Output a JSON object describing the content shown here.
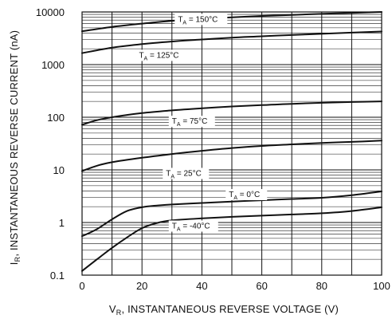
{
  "chart_data": {
    "type": "line",
    "xlabel": {
      "main": "V",
      "sub": "R",
      "rest": ", INSTANTANEOUS REVERSE VOLTAGE (V)"
    },
    "ylabel": {
      "main": "I",
      "sub": "R",
      "rest": ", INSTANTANEOUS REVERSE CURRENT (nA)"
    },
    "xlim": [
      0,
      100
    ],
    "ylim": [
      0.1,
      10000
    ],
    "yscale": "log",
    "grid": true,
    "x_ticks": [
      0,
      20,
      40,
      60,
      80,
      100
    ],
    "x_tick_labels": [
      "0",
      "20",
      "40",
      "60",
      "80",
      "100"
    ],
    "y_ticks": [
      0.1,
      1,
      10,
      100,
      1000,
      10000
    ],
    "y_tick_labels": [
      "0.1",
      "1",
      "10",
      "100",
      "1000",
      "10000"
    ],
    "series": [
      {
        "name": {
          "main": "T",
          "sub": "A",
          "rest": " = 150°C"
        },
        "x": [
          0,
          10,
          20,
          30,
          40,
          50,
          60,
          70,
          80,
          90,
          100
        ],
        "y": [
          4300,
          5200,
          6000,
          6800,
          7400,
          7900,
          8400,
          8800,
          9200,
          9600,
          10000
        ]
      },
      {
        "name": {
          "main": "T",
          "sub": "A",
          "rest": " = 125°C"
        },
        "x": [
          0,
          10,
          20,
          30,
          40,
          50,
          60,
          70,
          80,
          90,
          100
        ],
        "y": [
          1650,
          2100,
          2450,
          2750,
          3000,
          3250,
          3450,
          3650,
          3850,
          4050,
          4250
        ]
      },
      {
        "name": {
          "main": "T",
          "sub": "A",
          "rest": " = 75°C"
        },
        "x": [
          0,
          5,
          10,
          20,
          30,
          40,
          50,
          60,
          70,
          80,
          90,
          100
        ],
        "y": [
          72,
          88,
          100,
          120,
          135,
          148,
          160,
          170,
          180,
          188,
          195,
          200
        ]
      },
      {
        "name": {
          "main": "T",
          "sub": "A",
          "rest": " = 25°C"
        },
        "x": [
          0,
          5,
          10,
          20,
          30,
          40,
          50,
          60,
          70,
          80,
          90,
          100
        ],
        "y": [
          9.5,
          12,
          14,
          17,
          20,
          23,
          26,
          28.5,
          30.5,
          32.5,
          34,
          36
        ]
      },
      {
        "name": {
          "main": "T",
          "sub": "A",
          "rest": " = 0°C"
        },
        "x": [
          0,
          5,
          10,
          15,
          20,
          25,
          30,
          40,
          50,
          60,
          70,
          80,
          90,
          100
        ],
        "y": [
          0.55,
          0.75,
          1.15,
          1.65,
          1.95,
          2.1,
          2.2,
          2.35,
          2.5,
          2.65,
          2.8,
          2.95,
          3.3,
          3.9
        ]
      },
      {
        "name": {
          "main": "T",
          "sub": "A",
          "rest": " = -40°C"
        },
        "x": [
          0,
          5,
          10,
          15,
          20,
          25,
          30,
          40,
          50,
          60,
          70,
          80,
          90,
          100
        ],
        "y": [
          0.12,
          0.2,
          0.33,
          0.52,
          0.78,
          0.98,
          1.1,
          1.2,
          1.28,
          1.35,
          1.42,
          1.5,
          1.65,
          1.95
        ]
      }
    ]
  }
}
